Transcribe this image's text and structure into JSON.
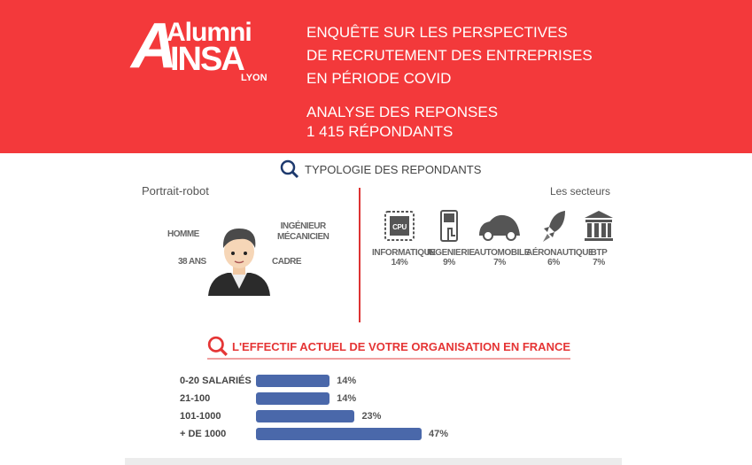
{
  "header": {
    "logo": {
      "line1": "Alumni",
      "line2": "INSA",
      "line3": "LYON"
    },
    "title_lines": [
      "ENQUÊTE SUR LES PERSPECTIVES",
      "DE RECRUTEMENT DES ENTREPRISES",
      "EN PÉRIODE COVID"
    ],
    "subtitle_lines": [
      "ANALYSE DES REPONSES",
      "1 415 RÉPONDANTS"
    ],
    "color": "#f3393b"
  },
  "typologie": {
    "title": "TYPOLOGIE DES REPONDANTS",
    "portrait_title": "Portrait-robot",
    "portrait": {
      "gender": "HOMME",
      "age": "38 ANS",
      "job_line1": "INGÉNIEUR",
      "job_line2": "MÉCANICIEN",
      "status": "CADRE"
    },
    "sectors_title": "Les secteurs",
    "sectors": [
      {
        "name": "INFORMATIQUE",
        "pct": "14%",
        "icon": "cpu-icon"
      },
      {
        "name": "INGENIERIE",
        "pct": "9%",
        "icon": "touch-panel-icon"
      },
      {
        "name": "AUTOMOBILE",
        "pct": "7%",
        "icon": "car-icon"
      },
      {
        "name": "AÉRONAUTIQUE",
        "pct": "6%",
        "icon": "rocket-icon"
      },
      {
        "name": "BTP",
        "pct": "7%",
        "icon": "building-icon"
      }
    ]
  },
  "chart_data": {
    "type": "bar",
    "title": "L'EFFECTIF ACTUEL DE VOTRE ORGANISATION EN FRANCE",
    "categories": [
      "0-20 SALARIÉS",
      "21-100",
      "101-1000",
      "+ DE 1000"
    ],
    "values": [
      14,
      14,
      23,
      47
    ],
    "labels": [
      "14%",
      "14%",
      "23%",
      "47%"
    ],
    "color": "#4a68aa"
  }
}
